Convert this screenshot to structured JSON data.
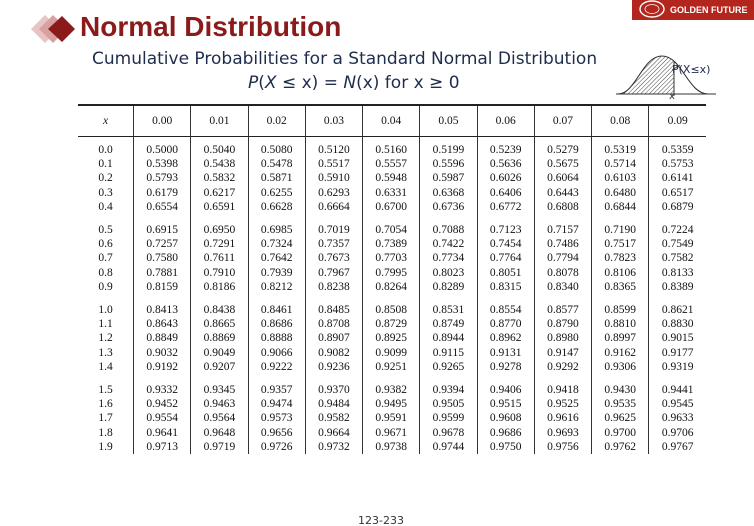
{
  "slide": {
    "title": "Normal Distribution",
    "subtitle": "Cumulative Probabilities for a Standard Normal Distribution",
    "formula": {
      "p": "P",
      "open": "(",
      "var_x": "X",
      "middle": " ≤ x) = ",
      "n": "N",
      "tail": "(x) for x ≥ 0"
    },
    "curve_label": "P(X≤x)",
    "curve_axis_label": "x",
    "brand_text": "GOLDEN FUTURE",
    "page_number": "123-233"
  },
  "colors": {
    "title": "#8b1a1a",
    "brand": "#b3261e",
    "text": "#1f2d4d",
    "diamond_dark": "#8b1a1a",
    "diamond_light": "#d9a0a0"
  },
  "icons": {
    "logo": "double-diamond-logo-icon",
    "curve": "normal-curve-icon",
    "seal": "brand-seal-icon"
  },
  "table": {
    "x_header": "x",
    "columns": [
      "0.00",
      "0.01",
      "0.02",
      "0.03",
      "0.04",
      "0.05",
      "0.06",
      "0.07",
      "0.08",
      "0.09"
    ],
    "groups": [
      {
        "rows": [
          {
            "x": "0.0",
            "values": [
              "0.5000",
              "0.5040",
              "0.5080",
              "0.5120",
              "0.5160",
              "0.5199",
              "0.5239",
              "0.5279",
              "0.5319",
              "0.5359"
            ]
          },
          {
            "x": "0.1",
            "values": [
              "0.5398",
              "0.5438",
              "0.5478",
              "0.5517",
              "0.5557",
              "0.5596",
              "0.5636",
              "0.5675",
              "0.5714",
              "0.5753"
            ]
          },
          {
            "x": "0.2",
            "values": [
              "0.5793",
              "0.5832",
              "0.5871",
              "0.5910",
              "0.5948",
              "0.5987",
              "0.6026",
              "0.6064",
              "0.6103",
              "0.6141"
            ]
          },
          {
            "x": "0.3",
            "values": [
              "0.6179",
              "0.6217",
              "0.6255",
              "0.6293",
              "0.6331",
              "0.6368",
              "0.6406",
              "0.6443",
              "0.6480",
              "0.6517"
            ]
          },
          {
            "x": "0.4",
            "values": [
              "0.6554",
              "0.6591",
              "0.6628",
              "0.6664",
              "0.6700",
              "0.6736",
              "0.6772",
              "0.6808",
              "0.6844",
              "0.6879"
            ]
          }
        ]
      },
      {
        "rows": [
          {
            "x": "0.5",
            "values": [
              "0.6915",
              "0.6950",
              "0.6985",
              "0.7019",
              "0.7054",
              "0.7088",
              "0.7123",
              "0.7157",
              "0.7190",
              "0.7224"
            ]
          },
          {
            "x": "0.6",
            "values": [
              "0.7257",
              "0.7291",
              "0.7324",
              "0.7357",
              "0.7389",
              "0.7422",
              "0.7454",
              "0.7486",
              "0.7517",
              "0.7549"
            ]
          },
          {
            "x": "0.7",
            "values": [
              "0.7580",
              "0.7611",
              "0.7642",
              "0.7673",
              "0.7703",
              "0.7734",
              "0.7764",
              "0.7794",
              "0.7823",
              "0.7582"
            ]
          },
          {
            "x": "0.8",
            "values": [
              "0.7881",
              "0.7910",
              "0.7939",
              "0.7967",
              "0.7995",
              "0.8023",
              "0.8051",
              "0.8078",
              "0.8106",
              "0.8133"
            ]
          },
          {
            "x": "0.9",
            "values": [
              "0.8159",
              "0.8186",
              "0.8212",
              "0.8238",
              "0.8264",
              "0.8289",
              "0.8315",
              "0.8340",
              "0.8365",
              "0.8389"
            ]
          }
        ]
      },
      {
        "rows": [
          {
            "x": "1.0",
            "values": [
              "0.8413",
              "0.8438",
              "0.8461",
              "0.8485",
              "0.8508",
              "0.8531",
              "0.8554",
              "0.8577",
              "0.8599",
              "0.8621"
            ]
          },
          {
            "x": "1.1",
            "values": [
              "0.8643",
              "0.8665",
              "0.8686",
              "0.8708",
              "0.8729",
              "0.8749",
              "0.8770",
              "0.8790",
              "0.8810",
              "0.8830"
            ]
          },
          {
            "x": "1.2",
            "values": [
              "0.8849",
              "0.8869",
              "0.8888",
              "0.8907",
              "0.8925",
              "0.8944",
              "0.8962",
              "0.8980",
              "0.8997",
              "0.9015"
            ]
          },
          {
            "x": "1.3",
            "values": [
              "0.9032",
              "0.9049",
              "0.9066",
              "0.9082",
              "0.9099",
              "0.9115",
              "0.9131",
              "0.9147",
              "0.9162",
              "0.9177"
            ]
          },
          {
            "x": "1.4",
            "values": [
              "0.9192",
              "0.9207",
              "0.9222",
              "0.9236",
              "0.9251",
              "0.9265",
              "0.9278",
              "0.9292",
              "0.9306",
              "0.9319"
            ]
          }
        ]
      },
      {
        "rows": [
          {
            "x": "1.5",
            "values": [
              "0.9332",
              "0.9345",
              "0.9357",
              "0.9370",
              "0.9382",
              "0.9394",
              "0.9406",
              "0.9418",
              "0.9430",
              "0.9441"
            ]
          },
          {
            "x": "1.6",
            "values": [
              "0.9452",
              "0.9463",
              "0.9474",
              "0.9484",
              "0.9495",
              "0.9505",
              "0.9515",
              "0.9525",
              "0.9535",
              "0.9545"
            ]
          },
          {
            "x": "1.7",
            "values": [
              "0.9554",
              "0.9564",
              "0.9573",
              "0.9582",
              "0.9591",
              "0.9599",
              "0.9608",
              "0.9616",
              "0.9625",
              "0.9633"
            ]
          },
          {
            "x": "1.8",
            "values": [
              "0.9641",
              "0.9648",
              "0.9656",
              "0.9664",
              "0.9671",
              "0.9678",
              "0.9686",
              "0.9693",
              "0.9700",
              "0.9706"
            ]
          },
          {
            "x": "1.9",
            "values": [
              "0.9713",
              "0.9719",
              "0.9726",
              "0.9732",
              "0.9738",
              "0.9744",
              "0.9750",
              "0.9756",
              "0.9762",
              "0.9767"
            ]
          }
        ]
      }
    ]
  }
}
